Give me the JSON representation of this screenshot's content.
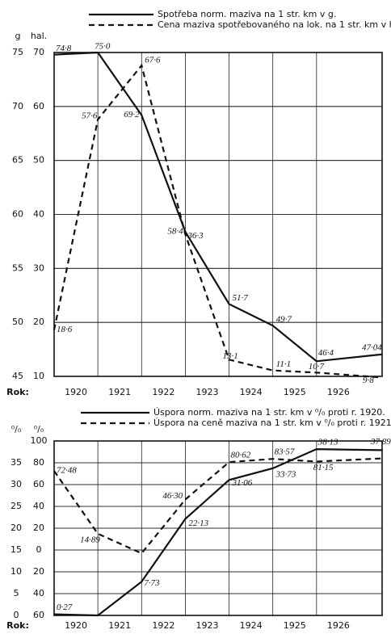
{
  "chart_data": [
    {
      "type": "line",
      "ylabel": "g",
      "y2label": "hal.",
      "xlabel": "Rok:",
      "x": [
        1920,
        1921,
        1922,
        1923,
        1924,
        1925,
        1926,
        1927.5
      ],
      "xlim": [
        1920,
        1927.5
      ],
      "xticks": [
        {
          "value": 1920.5,
          "label": "1920"
        },
        {
          "value": 1921.5,
          "label": "1921"
        },
        {
          "value": 1922.5,
          "label": "1922"
        },
        {
          "value": 1923.5,
          "label": "1923"
        },
        {
          "value": 1924.5,
          "label": "1924"
        },
        {
          "value": 1925.5,
          "label": "1925"
        },
        {
          "value": 1926.5,
          "label": "1926"
        }
      ],
      "ylim": [
        45,
        75
      ],
      "yticks": [
        45,
        50,
        55,
        60,
        65,
        70,
        75
      ],
      "y2lim": [
        10,
        70
      ],
      "y2ticks": [
        10,
        20,
        30,
        40,
        50,
        60,
        70
      ],
      "grid": true,
      "series": [
        {
          "name": "Spotřeba norm. maziva na 1 str. km v g.",
          "color": "#111111",
          "style": "solid",
          "axis": "y",
          "values": [
            74.8,
            75.0,
            69.2,
            58.4,
            51.7,
            49.7,
            46.4,
            47.04
          ],
          "value_labels": [
            "74·8",
            "75·0",
            "69·2",
            "58·4",
            "51·7",
            "49·7",
            "46·4",
            "47·04"
          ]
        },
        {
          "name": "Cena maziva spotřebovaného na lok. na 1 str. km v h.",
          "color": "#111111",
          "style": "dashed",
          "axis": "y2",
          "values": [
            18.6,
            57.6,
            67.6,
            36.3,
            13.1,
            11.1,
            10.7,
            9.8
          ],
          "value_labels": [
            "18·6",
            "57·6",
            "67·6",
            "36·3",
            "13·1",
            "11·1",
            "10·7",
            "9·8"
          ]
        }
      ]
    },
    {
      "type": "line",
      "ylabel": "⁰/₀",
      "y2label": "⁰/₀",
      "xlabel": "Rok:",
      "x": [
        1920,
        1921,
        1922,
        1923,
        1924,
        1925,
        1926,
        1927.5
      ],
      "xlim": [
        1920,
        1927.5
      ],
      "xticks": [
        {
          "value": 1920.5,
          "label": "1920"
        },
        {
          "value": 1921.5,
          "label": "1921"
        },
        {
          "value": 1922.5,
          "label": "1922"
        },
        {
          "value": 1923.5,
          "label": "1923"
        },
        {
          "value": 1924.5,
          "label": "1924"
        },
        {
          "value": 1925.5,
          "label": "1925"
        },
        {
          "value": 1926.5,
          "label": "1926"
        }
      ],
      "ylim": [
        0,
        40
      ],
      "yticks": [
        0,
        5,
        10,
        15,
        20,
        25,
        30,
        35
      ],
      "y2lim": [
        -60,
        100
      ],
      "y2ticks": [
        {
          "value": -60,
          "label": "60"
        },
        {
          "value": -40,
          "label": "40"
        },
        {
          "value": -20,
          "label": "20"
        },
        0,
        20,
        40,
        60,
        80,
        100
      ],
      "grid": true,
      "series": [
        {
          "name": "Úspora norm. maziva na 1 str. km v ⁰/₀ proti r. 1920.",
          "color": "#111111",
          "style": "solid",
          "axis": "y",
          "values": [
            0.27,
            0,
            7.73,
            22.13,
            31.06,
            33.73,
            38.13,
            37.89
          ],
          "value_labels": [
            "0·27",
            null,
            "7·73",
            "22·13",
            "31·06",
            "33·73",
            "38·13",
            "37·89"
          ]
        },
        {
          "name": "Úspora na ceně maziva na 1 str. km v ⁰/₀ proti r. 1921.",
          "color": "#111111",
          "style": "dashed",
          "axis": "y2",
          "values": [
            72.48,
            14.89,
            -3,
            46.3,
            80.62,
            83.57,
            81.15,
            84
          ],
          "value_labels": [
            "72·48",
            "14·89",
            null,
            "46·30",
            "80·62",
            "83·57",
            "81·15",
            null
          ]
        }
      ]
    }
  ]
}
